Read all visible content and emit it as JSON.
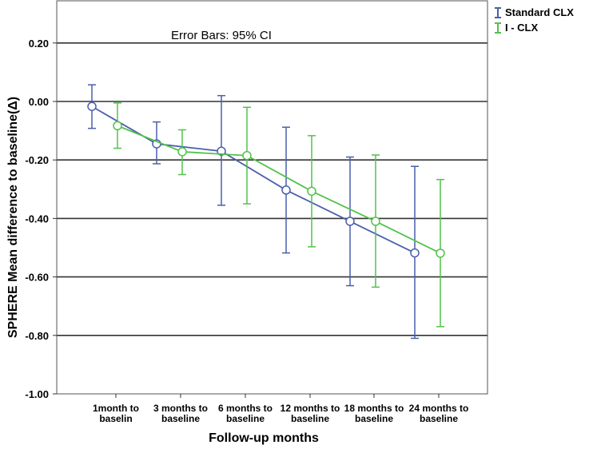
{
  "chart_data": {
    "type": "line",
    "title": "",
    "annotation": "Error Bars: 95% CI",
    "xlabel": "Follow-up months",
    "ylabel": "SPHERE Mean difference to baseline(Δ)",
    "categories": [
      [
        "1month to",
        "baselin"
      ],
      [
        "3 months to",
        "baseline"
      ],
      [
        "6 months to",
        "baseline"
      ],
      [
        "12 months to",
        "baseline"
      ],
      [
        "18 months to",
        "baseline"
      ],
      [
        "24 months to",
        "baseline"
      ]
    ],
    "ylim": [
      -1.0,
      0.3
    ],
    "yticks": [
      0.2,
      0.0,
      -0.2,
      -0.4,
      -0.6,
      -0.8,
      -1.0
    ],
    "ytick_labels": [
      "0.20",
      "0.00",
      "-0.20",
      "-0.40",
      "-0.60",
      "-0.80",
      "-1.00"
    ],
    "grid": true,
    "legend_position": "top-right",
    "series": [
      {
        "name": "Standard CLX",
        "color": "#4a5fad",
        "values": [
          -0.017,
          -0.145,
          -0.17,
          -0.303,
          -0.41,
          -0.518
        ],
        "ci_low": [
          -0.092,
          -0.213,
          -0.355,
          -0.518,
          -0.63,
          -0.81
        ],
        "ci_high": [
          0.057,
          -0.07,
          0.02,
          -0.088,
          -0.19,
          -0.222
        ]
      },
      {
        "name": "I - CLX",
        "color": "#52c24a",
        "values": [
          -0.083,
          -0.172,
          -0.185,
          -0.307,
          -0.41,
          -0.519
        ],
        "ci_low": [
          -0.16,
          -0.25,
          -0.35,
          -0.497,
          -0.635,
          -0.77
        ],
        "ci_high": [
          -0.005,
          -0.097,
          -0.02,
          -0.117,
          -0.183,
          -0.267
        ]
      }
    ]
  }
}
